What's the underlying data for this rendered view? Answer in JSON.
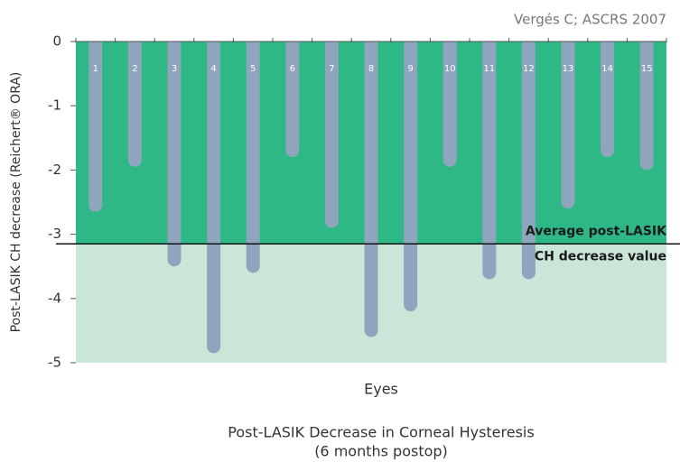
{
  "chart_data": {
    "type": "bar",
    "title": "Post-LASIK Decrease in Corneal Hysteresis",
    "subtitle": "(6 months postop)",
    "source": "Vergés C;  ASCRS 2007",
    "x_label": "Eyes",
    "y_label": "Post-LASIK CH decrease (Reichert® ORA)",
    "categories": [
      "1",
      "2",
      "3",
      "4",
      "5",
      "6",
      "7",
      "8",
      "9",
      "10",
      "11",
      "12",
      "13",
      "14",
      "15"
    ],
    "values": [
      -2.65,
      -1.95,
      -3.5,
      -4.85,
      -3.6,
      -1.8,
      -2.9,
      -4.6,
      -4.2,
      -1.95,
      -3.7,
      -3.7,
      -2.6,
      -1.8,
      -2.0
    ],
    "color": "#8fa5bd",
    "reference_line": -3.15,
    "annotations": [
      "Average post-LASIK",
      "CH decrease value"
    ],
    "upper_color": "#2eb886",
    "lower_color": "#c9e6d8",
    "ylim": [
      -5,
      0
    ],
    "yticks": [
      0,
      -1,
      -2,
      -3,
      -4,
      -5
    ]
  }
}
